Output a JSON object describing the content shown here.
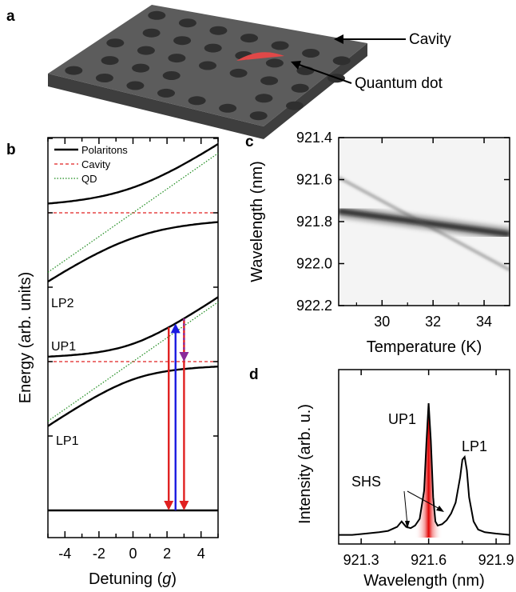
{
  "panel_a": {
    "letter": "a",
    "label_cavity": "Cavity",
    "label_qd": "Quantum dot",
    "colors": {
      "slab_top": "#5c5c5c",
      "slab_side": "#3e3e3e",
      "hole": "#2f2f2f",
      "qd": "#e04848"
    }
  },
  "chart_data": [
    {
      "panel": "b",
      "type": "line",
      "xlabel_prefix": "Detuning (",
      "xlabel_var": "g",
      "xlabel_suffix": ")",
      "ylabel": "Energy (arb. units)",
      "xlim": [
        -5,
        5
      ],
      "xticks": [
        "-4",
        "-2",
        "0",
        "2",
        "4"
      ],
      "xtick_values": [
        -4,
        -2,
        0,
        2,
        4
      ],
      "legend": [
        {
          "name": "Polaritons",
          "style": "solid",
          "color": "#000000"
        },
        {
          "name": "Cavity",
          "style": "dashed",
          "color": "#e02020"
        },
        {
          "name": "QD",
          "style": "dotted",
          "color": "#1a8a1a"
        }
      ],
      "labels": {
        "lp2": "LP2",
        "up1": "UP1",
        "lp1": "LP1"
      },
      "levels": {
        "ground": 0,
        "first_manifold": 1,
        "second_manifold": 2,
        "coupling_g": 1
      },
      "arrows": [
        {
          "from": 0,
          "to": "UP1",
          "x": 2.1,
          "color": "#e02020",
          "direction": "down"
        },
        {
          "from": 0,
          "to": "UP1",
          "x": 2.5,
          "color": "#1a1ae0",
          "direction": "up"
        },
        {
          "from": "UP1",
          "to": 0,
          "x": 3.0,
          "color": "#e02020",
          "direction": "down"
        },
        {
          "from": "UP1",
          "to": "cavity",
          "x": 3.0,
          "color": "#8a2a9a",
          "direction": "down",
          "style": "dotted"
        }
      ]
    },
    {
      "panel": "c",
      "type": "heatmap",
      "xlabel": "Temperature (K)",
      "ylabel": "Wavelength (nm)",
      "xlim": [
        28.3,
        35.0
      ],
      "ylim": [
        921.4,
        922.2
      ],
      "xticks": [
        "30",
        "32",
        "34"
      ],
      "xtick_values": [
        30,
        32,
        34
      ],
      "yticks": [
        "921.4",
        "921.6",
        "921.8",
        "922.0",
        "922.2"
      ],
      "ytick_values": [
        921.4,
        921.6,
        921.8,
        922.0,
        922.2
      ],
      "cavity_line": {
        "x": [
          28.3,
          35.0
        ],
        "y": [
          921.75,
          921.86
        ]
      },
      "qd_line": {
        "x": [
          28.3,
          35.0
        ],
        "y": [
          921.59,
          922.03
        ]
      }
    },
    {
      "panel": "d",
      "type": "line",
      "xlabel": "Wavelength (nm)",
      "ylabel": "Intensity (arb. u.)",
      "xlim": [
        921.2,
        921.96
      ],
      "xticks": [
        "921.3",
        "921.6",
        "921.9"
      ],
      "xtick_values": [
        921.3,
        921.6,
        921.9
      ],
      "labels": {
        "up1": "UP1",
        "lp1": "LP1",
        "shs": "SHS"
      },
      "spectrum": {
        "x": [
          921.2,
          921.26,
          921.32,
          921.38,
          921.42,
          921.46,
          921.48,
          921.5,
          921.52,
          921.54,
          921.56,
          921.58,
          921.59,
          921.6,
          921.61,
          921.62,
          921.63,
          921.64,
          921.66,
          921.68,
          921.7,
          921.72,
          921.74,
          921.75,
          921.76,
          921.77,
          921.78,
          921.8,
          921.82,
          921.85,
          921.9,
          921.96
        ],
        "y": [
          0.02,
          0.02,
          0.03,
          0.04,
          0.05,
          0.08,
          0.12,
          0.08,
          0.07,
          0.09,
          0.14,
          0.35,
          0.7,
          1.0,
          0.72,
          0.3,
          0.12,
          0.09,
          0.1,
          0.13,
          0.18,
          0.26,
          0.45,
          0.58,
          0.6,
          0.5,
          0.3,
          0.12,
          0.06,
          0.04,
          0.03,
          0.02
        ]
      }
    }
  ]
}
